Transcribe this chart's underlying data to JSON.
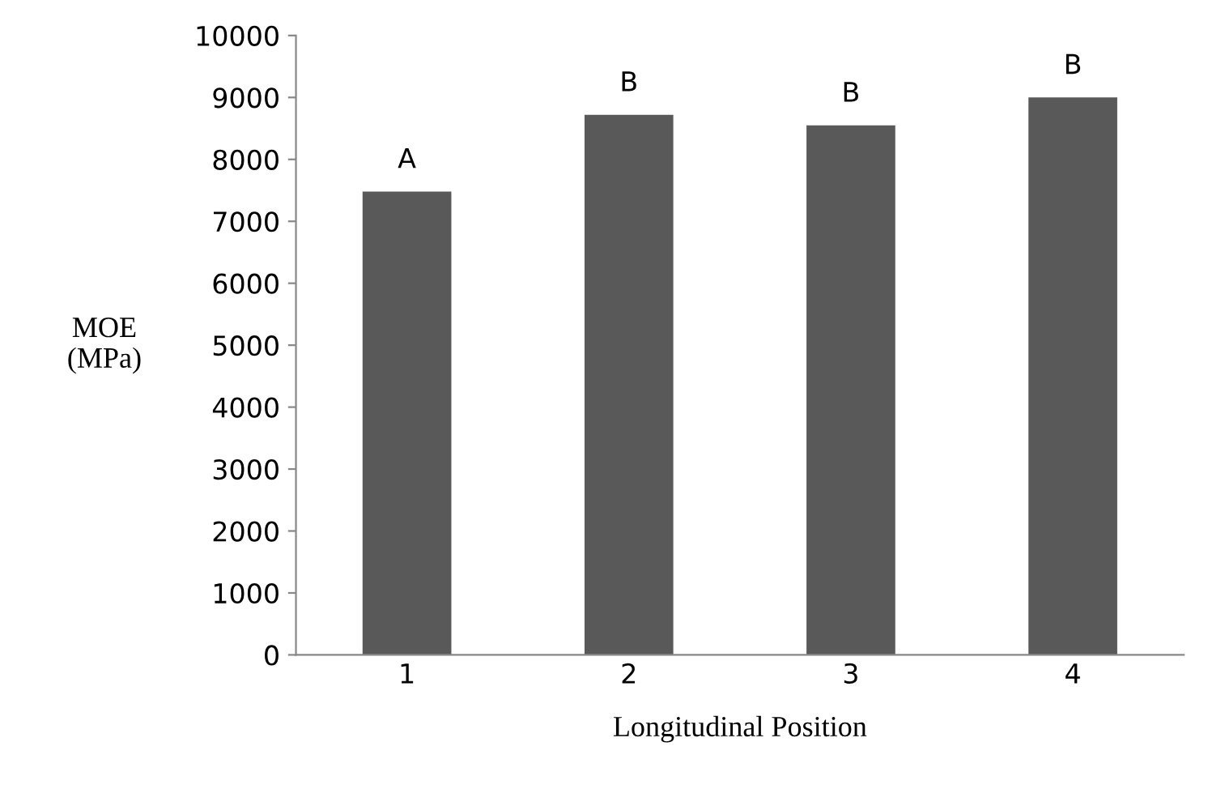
{
  "chart_data": {
    "type": "bar",
    "xlabel": "Longitudinal Position",
    "ylabel": "MOE\n(MPa)",
    "categories": [
      "1",
      "2",
      "3",
      "4"
    ],
    "values": [
      7480,
      8720,
      8550,
      9000
    ],
    "color": "#595959",
    "ylim": [
      0,
      10000
    ],
    "yticks": [
      0,
      1000,
      2000,
      3000,
      4000,
      5000,
      6000,
      7000,
      8000,
      9000,
      10000
    ],
    "grid": false,
    "annotations": [
      {
        "text": "A",
        "x": "1",
        "y": 7480
      },
      {
        "text": "B",
        "x": "2",
        "y": 8720
      },
      {
        "text": "B",
        "x": "3",
        "y": 8550
      },
      {
        "text": "B",
        "x": "4",
        "y": 9000
      }
    ]
  }
}
